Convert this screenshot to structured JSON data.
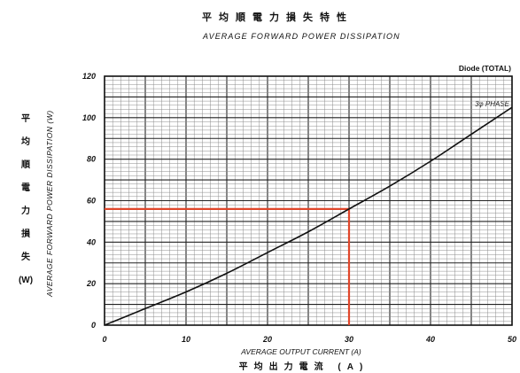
{
  "chart_data": {
    "type": "line",
    "title": "平均順電力損失特性",
    "subtitle": "AVERAGE FORWARD POWER DISSIPATION",
    "xlabel": "AVERAGE OUTPUT CURRENT (A)",
    "xlabel_ja": "平均出力電流 (A)",
    "ylabel": "AVERAGE FORWARD POWER DISSIPATION (W)",
    "ylabel_ja": [
      "平",
      "均",
      "順",
      "電",
      "力",
      "損",
      "失",
      "(W)"
    ],
    "xlim": [
      0,
      50
    ],
    "ylim": [
      0,
      120
    ],
    "xticks": [
      0,
      10,
      20,
      30,
      40,
      50
    ],
    "yticks": [
      0,
      20,
      40,
      60,
      80,
      100,
      120
    ],
    "grid": true,
    "annotation": "Diode (TOTAL)",
    "series": [
      {
        "name": "3φ PHASE",
        "color": "#111111",
        "x": [
          0,
          5,
          10,
          15,
          20,
          25,
          30,
          35,
          40,
          45,
          50
        ],
        "y": [
          0,
          8,
          16,
          25,
          35,
          45,
          56,
          67,
          79,
          92,
          105
        ]
      }
    ],
    "reference_point": {
      "x": 30,
      "y": 56,
      "color": "#e0462a"
    }
  }
}
